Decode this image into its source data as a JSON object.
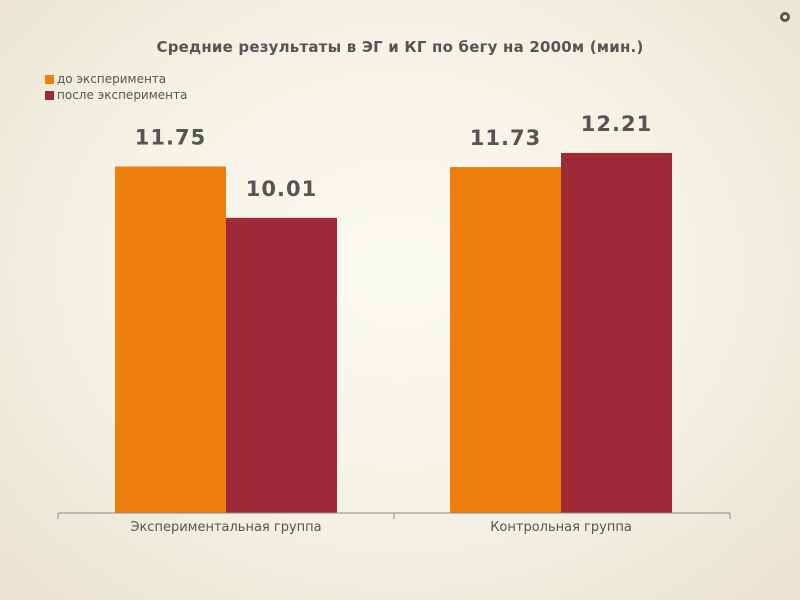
{
  "chart_data": {
    "type": "bar",
    "title": "Средние результаты в ЭГ и КГ по бегу на 2000м (мин.)",
    "xlabel": "",
    "ylabel": "",
    "categories": [
      "Экспериментальная группа",
      "Контрольная группа"
    ],
    "series": [
      {
        "name": "до эксперимента",
        "values": [
          11.75,
          11.73
        ],
        "labels": [
          "11.75",
          "11.73"
        ],
        "color": "#ee7f0e"
      },
      {
        "name": "после эксперимента",
        "values": [
          10.01,
          12.21
        ],
        "labels": [
          "10.01",
          "12.21"
        ],
        "color": "#9e2a38"
      }
    ],
    "ylim": [
      0,
      14.75
    ],
    "grid": false,
    "legend_position": "top-left"
  },
  "colors": {
    "background": "#f4f1e4",
    "text": "#555555",
    "axis": "#8a8a8a",
    "corner_dot": "#555555"
  }
}
